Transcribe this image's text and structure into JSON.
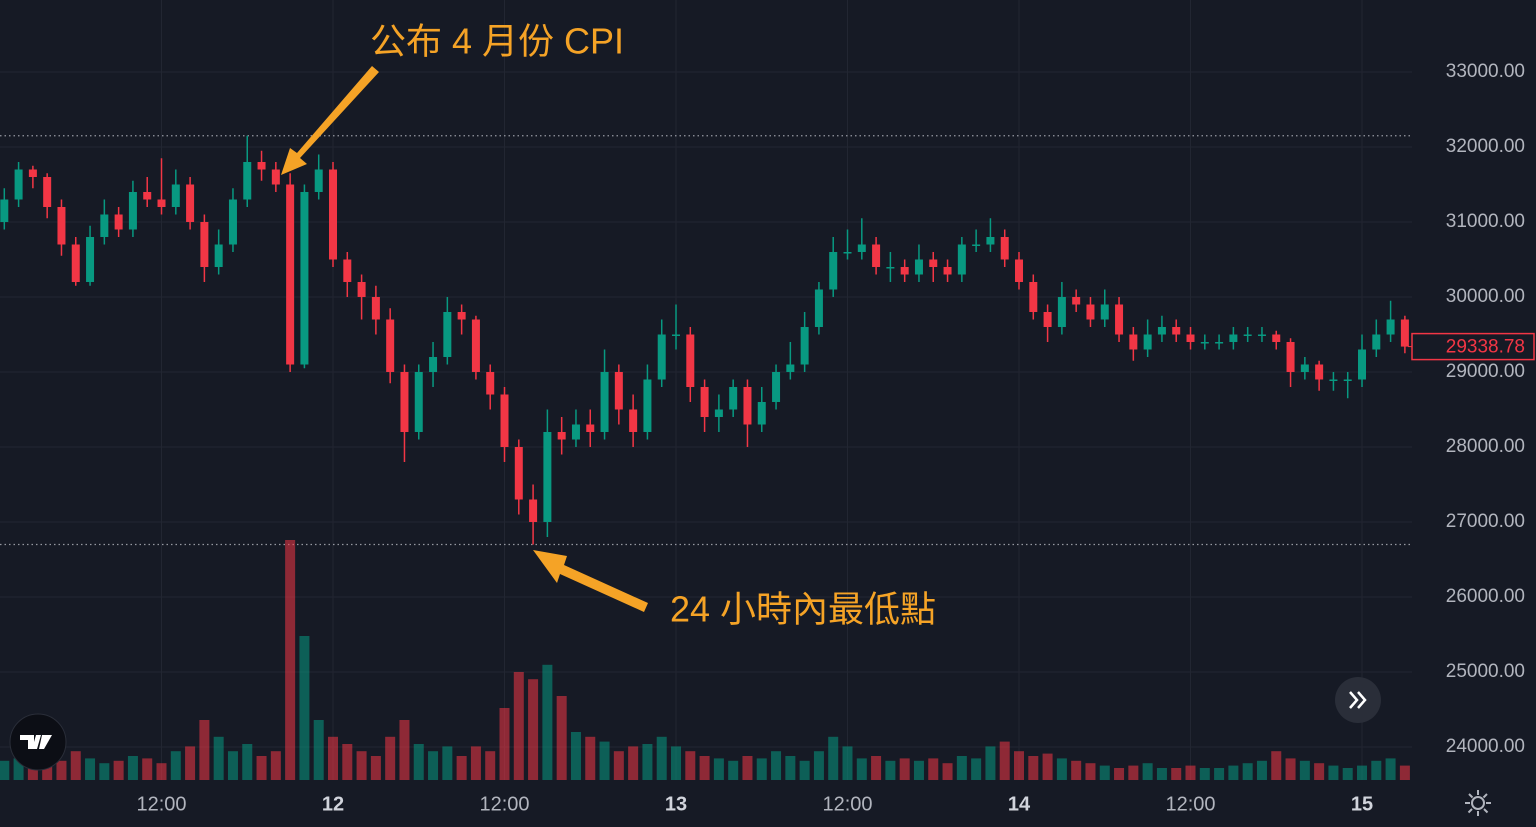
{
  "chart_data": {
    "type": "candlestick",
    "annotations": [
      "公布 4 月份 CPI",
      "24 小時內最低點"
    ],
    "categories": [
      null,
      null,
      null,
      null,
      null,
      null,
      null,
      null,
      null,
      null,
      null,
      "12:00",
      null,
      null,
      null,
      null,
      null,
      null,
      null,
      null,
      null,
      null,
      null,
      "12",
      null,
      null,
      null,
      null,
      null,
      null,
      null,
      null,
      null,
      null,
      null,
      "12:00",
      null,
      null,
      null,
      null,
      null,
      null,
      null,
      null,
      null,
      null,
      null,
      "13",
      null,
      null,
      null,
      null,
      null,
      null,
      null,
      null,
      null,
      null,
      null,
      "12:00",
      null,
      null,
      null,
      null,
      null,
      null,
      null,
      null,
      null,
      null,
      null,
      "14",
      null,
      null,
      null,
      null,
      null,
      null,
      null,
      null,
      null,
      null,
      null,
      "12:00",
      null,
      null,
      null,
      null,
      null,
      null,
      null,
      null,
      null,
      null,
      null,
      "15",
      null,
      null,
      null
    ],
    "open": [
      31000,
      31300,
      31700,
      31600,
      31200,
      30700,
      30200,
      30800,
      31100,
      30900,
      31400,
      31300,
      31200,
      31500,
      31000,
      30400,
      30700,
      31300,
      31800,
      31700,
      31500,
      29100,
      31400,
      31700,
      30500,
      30200,
      30000,
      29700,
      29000,
      28200,
      29000,
      29200,
      29800,
      29700,
      29000,
      28700,
      28000,
      27300,
      27000,
      28200,
      28100,
      28300,
      28200,
      29000,
      28500,
      28200,
      28900,
      29500,
      29500,
      28800,
      28400,
      28500,
      28800,
      28300,
      28600,
      29000,
      29100,
      29600,
      30100,
      30600,
      30600,
      30700,
      30400,
      30400,
      30300,
      30500,
      30400,
      30300,
      30700,
      30700,
      30800,
      30500,
      30200,
      29800,
      29600,
      30000,
      29900,
      29700,
      29900,
      29500,
      29300,
      29500,
      29600,
      29500,
      29400,
      29400,
      29400,
      29500,
      29500,
      29500,
      29400,
      29000,
      29100,
      28900,
      28900,
      28900,
      29300,
      29500,
      29700
    ],
    "high": [
      31450,
      31800,
      31750,
      31650,
      31300,
      30800,
      30950,
      31300,
      31200,
      31550,
      31600,
      31850,
      31700,
      31600,
      31100,
      30900,
      31450,
      32150,
      31950,
      31800,
      31650,
      31500,
      31900,
      31800,
      30600,
      30300,
      30150,
      29850,
      29100,
      29100,
      29400,
      30000,
      29900,
      29750,
      29100,
      28800,
      28100,
      27500,
      28500,
      28400,
      28500,
      28500,
      29300,
      29100,
      28700,
      29100,
      29700,
      29900,
      29600,
      28900,
      28700,
      28900,
      28900,
      28800,
      29100,
      29400,
      29800,
      30200,
      30800,
      30900,
      31050,
      30800,
      30600,
      30500,
      30700,
      30600,
      30500,
      30800,
      30900,
      31050,
      30900,
      30600,
      30300,
      29900,
      30200,
      30100,
      30000,
      30100,
      30000,
      29600,
      29700,
      29750,
      29700,
      29600,
      29500,
      29500,
      29600,
      29600,
      29600,
      29550,
      29450,
      29200,
      29150,
      29000,
      29000,
      29500,
      29700,
      29950,
      29750
    ],
    "low": [
      30900,
      31200,
      31450,
      31050,
      30550,
      30150,
      30150,
      30700,
      30800,
      30800,
      31200,
      31100,
      31100,
      30900,
      30200,
      30300,
      30600,
      31200,
      31550,
      31400,
      29000,
      29050,
      31300,
      30400,
      30000,
      29700,
      29500,
      28850,
      27800,
      28100,
      28800,
      29100,
      29500,
      28900,
      28500,
      27800,
      27100,
      26700,
      26800,
      27900,
      28000,
      28000,
      28100,
      28300,
      28000,
      28100,
      28800,
      29300,
      28600,
      28200,
      28200,
      28400,
      28000,
      28200,
      28500,
      28900,
      29000,
      29500,
      30000,
      30500,
      30500,
      30300,
      30200,
      30200,
      30200,
      30200,
      30200,
      30200,
      30600,
      30600,
      30400,
      30100,
      29700,
      29400,
      29500,
      29800,
      29600,
      29600,
      29400,
      29150,
      29200,
      29400,
      29400,
      29300,
      29300,
      29300,
      29300,
      29400,
      29400,
      29300,
      28800,
      28900,
      28750,
      28750,
      28650,
      28800,
      29200,
      29400,
      29250
    ],
    "close": [
      31300,
      31700,
      31600,
      31200,
      30700,
      30200,
      30800,
      31100,
      30900,
      31400,
      31300,
      31200,
      31500,
      31000,
      30400,
      30700,
      31300,
      31800,
      31700,
      31500,
      29100,
      31400,
      31700,
      30500,
      30200,
      30000,
      29700,
      29000,
      28200,
      29000,
      29200,
      29800,
      29700,
      29000,
      28700,
      28000,
      27300,
      27000,
      28200,
      28100,
      28300,
      28200,
      29000,
      28500,
      28200,
      28900,
      29500,
      29500,
      28800,
      28400,
      28500,
      28800,
      28300,
      28600,
      29000,
      29100,
      29600,
      30100,
      30600,
      30600,
      30700,
      30400,
      30400,
      30300,
      30500,
      30400,
      30300,
      30700,
      30700,
      30800,
      30500,
      30200,
      29800,
      29600,
      30000,
      29900,
      29700,
      29900,
      29500,
      29300,
      29500,
      29600,
      29500,
      29400,
      29400,
      29400,
      29500,
      29500,
      29500,
      29400,
      29000,
      29100,
      28900,
      28900,
      28900,
      29300,
      29500,
      29700,
      29338.78
    ],
    "volume": [
      8,
      9,
      7,
      10,
      8,
      12,
      9,
      7,
      8,
      10,
      9,
      7,
      12,
      14,
      25,
      18,
      12,
      15,
      10,
      12,
      100,
      60,
      25,
      18,
      15,
      12,
      10,
      18,
      25,
      15,
      12,
      14,
      10,
      14,
      12,
      30,
      45,
      42,
      48,
      35,
      20,
      18,
      16,
      12,
      14,
      15,
      18,
      14,
      12,
      10,
      9,
      8,
      10,
      9,
      12,
      10,
      8,
      12,
      18,
      14,
      9,
      10,
      8,
      9,
      8,
      9,
      7,
      10,
      9,
      14,
      16,
      12,
      10,
      11,
      9,
      8,
      7,
      6,
      5,
      6,
      7,
      5,
      5,
      6,
      5,
      5,
      6,
      7,
      8,
      12,
      9,
      8,
      7,
      6,
      5,
      6,
      8,
      9,
      6
    ],
    "volume_ylim": [
      0,
      100
    ],
    "up_color": "#089981",
    "down_color": "#f23645",
    "ylim": [
      23560,
      33960
    ],
    "yticks": [
      {
        "value": 24000,
        "label": "24000.00"
      },
      {
        "value": 25000,
        "label": "25000.00"
      },
      {
        "value": 26000,
        "label": "26000.00"
      },
      {
        "value": 27000,
        "label": "27000.00"
      },
      {
        "value": 28000,
        "label": "28000.00"
      },
      {
        "value": 29000,
        "label": "29000.00"
      },
      {
        "value": 30000,
        "label": "30000.00"
      },
      {
        "value": 31000,
        "label": "31000.00"
      },
      {
        "value": 32000,
        "label": "32000.00"
      },
      {
        "value": 33000,
        "label": "33000.00"
      }
    ],
    "reference_lines": [
      32150,
      26700
    ],
    "last_price": 29338.78,
    "grid": true
  }
}
